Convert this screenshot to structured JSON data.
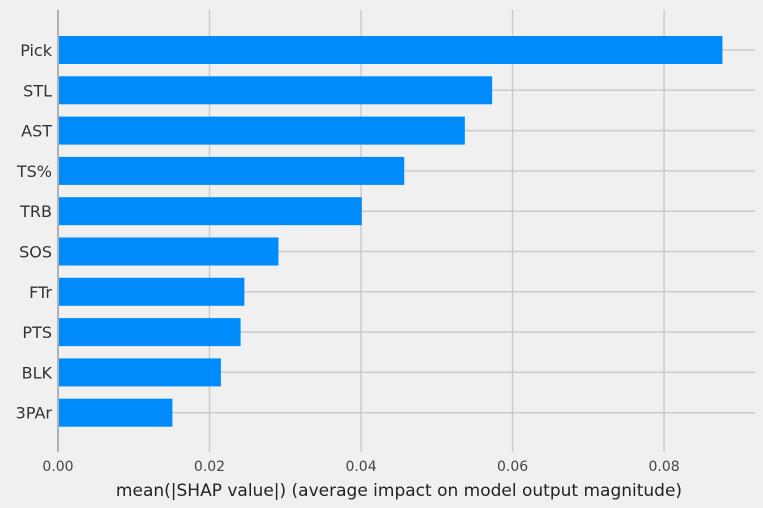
{
  "chart_data": {
    "type": "bar",
    "orientation": "horizontal",
    "categories": [
      "Pick",
      "STL",
      "AST",
      "TS%",
      "TRB",
      "SOS",
      "FTr",
      "PTS",
      "BLK",
      "3PAr"
    ],
    "values": [
      0.0877,
      0.0573,
      0.0537,
      0.0457,
      0.0401,
      0.0291,
      0.0246,
      0.0241,
      0.0215,
      0.0151
    ],
    "xlabel": "mean(|SHAP value|) (average impact on model output magnitude)",
    "ylabel": "",
    "title": "",
    "xlim": [
      0,
      0.092
    ],
    "xticks": [
      "0.00",
      "0.02",
      "0.04",
      "0.06",
      "0.08"
    ],
    "xtick_values": [
      0,
      0.02,
      0.04,
      0.06,
      0.08
    ],
    "bar_color": "#008bfb",
    "background_color": "#f0f0f0",
    "grid_color": "#cbcbcb",
    "grid": true
  }
}
